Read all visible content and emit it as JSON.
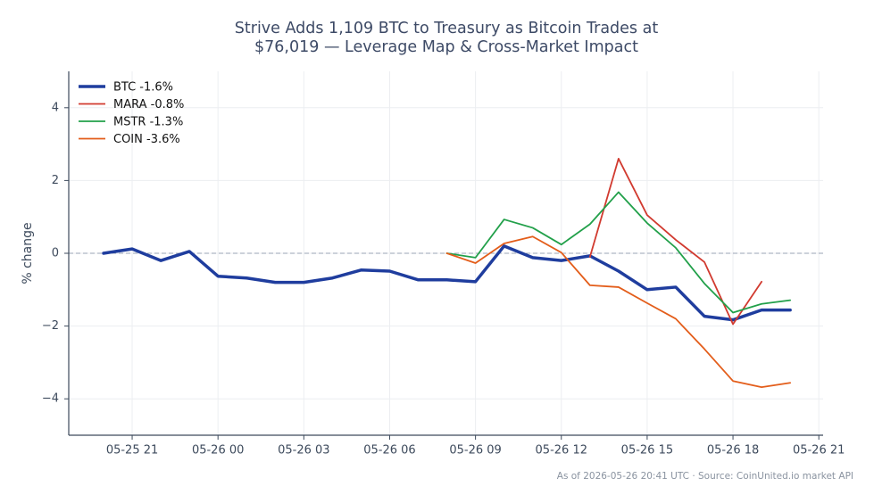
{
  "chart_data": {
    "type": "line",
    "title": [
      "Strive Adds 1,109 BTC to Treasury as Bitcoin Trades at",
      "$76,019 — Leverage Map & Cross-Market Impact"
    ],
    "y_label": "% change",
    "footer": "As of 2026-05-26 20:41 UTC · Source: CoinUnited.io market API",
    "x": [
      "05-25 20",
      "05-25 21",
      "05-25 22",
      "05-25 23",
      "05-26 00",
      "05-26 01",
      "05-26 02",
      "05-26 03",
      "05-26 04",
      "05-26 05",
      "05-26 06",
      "05-26 07",
      "05-26 08",
      "05-26 09",
      "05-26 10",
      "05-26 11",
      "05-26 12",
      "05-26 13",
      "05-26 14",
      "05-26 15",
      "05-26 16",
      "05-26 17",
      "05-26 18",
      "05-26 19",
      "05-26 20"
    ],
    "series": [
      {
        "name": "BTC -1.6%",
        "color": "#1f3d9e",
        "line_width": 3.5,
        "values": [
          0,
          0.12,
          -0.2,
          0.05,
          -0.63,
          -0.68,
          -0.8,
          -0.8,
          -0.68,
          -0.46,
          -0.49,
          -0.73,
          -0.73,
          -0.78,
          0.2,
          -0.12,
          -0.2,
          -0.07,
          -0.49,
          -1.0,
          -0.93,
          -1.73,
          -1.83,
          -1.56,
          -1.56
        ]
      },
      {
        "name": "MARA -0.8%",
        "color": "#d13a2f",
        "line_width": 1.8,
        "values": [
          null,
          null,
          null,
          null,
          null,
          null,
          null,
          null,
          null,
          null,
          null,
          null,
          null,
          null,
          null,
          null,
          null,
          -0.1,
          2.6,
          1.05,
          0.37,
          -0.24,
          -1.95,
          -0.78,
          null
        ]
      },
      {
        "name": "MSTR -1.3%",
        "color": "#22a04a",
        "line_width": 1.8,
        "values": [
          null,
          null,
          null,
          null,
          null,
          null,
          null,
          null,
          null,
          null,
          null,
          null,
          0,
          -0.12,
          0.93,
          0.7,
          0.24,
          0.8,
          1.68,
          0.83,
          0.15,
          -0.83,
          -1.63,
          -1.39,
          -1.29
        ]
      },
      {
        "name": "COIN -3.6%",
        "color": "#e35d1a",
        "line_width": 1.8,
        "values": [
          null,
          null,
          null,
          null,
          null,
          null,
          null,
          null,
          null,
          null,
          null,
          null,
          0,
          -0.27,
          0.27,
          0.46,
          0.02,
          -0.88,
          -0.93,
          -1.37,
          -1.8,
          -2.63,
          -3.51,
          -3.68,
          -3.56
        ]
      }
    ],
    "xlim": [
      "05-25 18:47",
      "05-26 21:09"
    ],
    "xticks": [
      "05-25 21",
      "05-26 00",
      "05-26 03",
      "05-26 06",
      "05-26 09",
      "05-26 12",
      "05-26 15",
      "05-26 18",
      "05-26 21"
    ],
    "ylim": [
      -5,
      5
    ],
    "yticks": [
      {
        "value": -4,
        "label": "−4"
      },
      {
        "value": -2,
        "label": "−2"
      },
      0,
      2,
      4
    ],
    "reference_line": 0,
    "grid": true,
    "legend": "upper left"
  }
}
